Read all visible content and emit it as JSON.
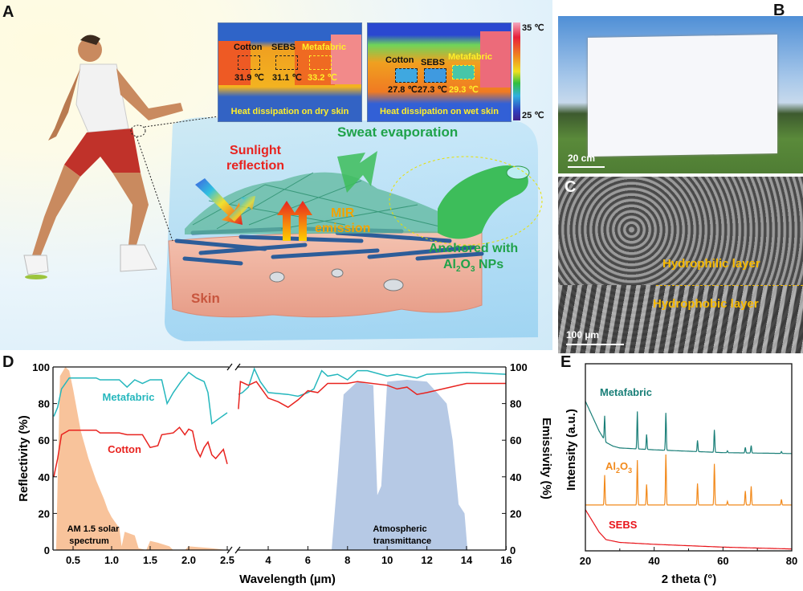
{
  "panel_labels": {
    "a": "A",
    "b": "B",
    "c": "C",
    "d": "D",
    "e": "E"
  },
  "panel_a": {
    "thermal_dry": {
      "labels": [
        "Cotton",
        "SEBS",
        "Metafabric"
      ],
      "temps": [
        "31.9 ℃",
        "31.1 ℃",
        "33.2 ℃"
      ],
      "caption": "Heat dissipation on dry skin"
    },
    "thermal_wet": {
      "labels": [
        "Cotton",
        "SEBS",
        "Metafabric"
      ],
      "temps": [
        "27.8 ℃",
        "27.3 ℃",
        "29.3 ℃"
      ],
      "caption": "Heat dissipation on wet skin"
    },
    "colorbar": {
      "max": "35 ℃",
      "min": "25 ℃"
    },
    "sweat": "Sweat evaporation",
    "sunlight": [
      "Sunlight",
      "reflection"
    ],
    "mir": [
      "MIR",
      "emission"
    ],
    "anchored": [
      "Anchored with",
      "Al",
      "2",
      "O",
      "3",
      " NPs"
    ],
    "skin": "Skin",
    "colors": {
      "sweat": "#1fa24a",
      "sunlight": "#e8231f",
      "mir": "#f2a300"
    }
  },
  "panel_b": {
    "scale_bar": "20 cm"
  },
  "panel_c": {
    "scale_bar": "100 µm",
    "top_layer": "Hydrophilic layer",
    "bottom_layer": "Hydrophobic layer"
  },
  "chart_data": [
    {
      "type": "line",
      "panel": "D",
      "xlabel": "Wavelength  (µm)",
      "ylabel_left": "Reflectivity (%)",
      "ylabel_right": "Emissivity (%)",
      "x_break": [
        2.5,
        2.5
      ],
      "xlim_left": [
        0.25,
        2.5
      ],
      "xlim_right": [
        2.5,
        16
      ],
      "ylim": [
        0,
        100
      ],
      "xticks_left": [
        "0.5",
        "1.0",
        "1.5",
        "2.0",
        "2.5"
      ],
      "xticks_right": [
        "4",
        "6",
        "8",
        "10",
        "12",
        "14",
        "16"
      ],
      "yticks": [
        "0",
        "20",
        "40",
        "60",
        "80",
        "100"
      ],
      "grid": false,
      "series": [
        {
          "name": "Metafabric",
          "color": "#25b7bd",
          "left": [
            [
              0.25,
              73
            ],
            [
              0.3,
              78
            ],
            [
              0.35,
              88
            ],
            [
              0.45,
              94
            ],
            [
              0.8,
              94
            ],
            [
              0.85,
              93
            ],
            [
              1.1,
              93
            ],
            [
              1.2,
              89
            ],
            [
              1.3,
              93
            ],
            [
              1.4,
              91
            ],
            [
              1.5,
              93
            ],
            [
              1.65,
              93
            ],
            [
              1.72,
              80
            ],
            [
              1.8,
              86
            ],
            [
              1.9,
              92
            ],
            [
              2.0,
              97
            ],
            [
              2.1,
              94
            ],
            [
              2.2,
              92
            ],
            [
              2.25,
              86
            ],
            [
              2.3,
              69
            ],
            [
              2.4,
              72
            ],
            [
              2.5,
              75
            ]
          ],
          "right": [
            [
              2.5,
              85
            ],
            [
              2.7,
              86
            ],
            [
              3.0,
              89
            ],
            [
              3.3,
              99
            ],
            [
              3.6,
              92
            ],
            [
              4,
              86
            ],
            [
              5,
              85
            ],
            [
              5.5,
              84
            ],
            [
              6,
              86
            ],
            [
              6.3,
              88
            ],
            [
              6.7,
              98
            ],
            [
              7,
              95
            ],
            [
              7.5,
              96
            ],
            [
              8,
              93
            ],
            [
              8.5,
              98
            ],
            [
              9,
              98
            ],
            [
              10,
              95
            ],
            [
              10.5,
              96
            ],
            [
              11.5,
              94
            ],
            [
              12,
              96
            ],
            [
              14,
              97
            ],
            [
              16,
              96
            ]
          ]
        },
        {
          "name": "Cotton",
          "color": "#e8231f",
          "left": [
            [
              0.25,
              40
            ],
            [
              0.3,
              50
            ],
            [
              0.35,
              63
            ],
            [
              0.45,
              65.5
            ],
            [
              0.8,
              65.5
            ],
            [
              0.85,
              64
            ],
            [
              1.1,
              64
            ],
            [
              1.2,
              63
            ],
            [
              1.4,
              63
            ],
            [
              1.5,
              56
            ],
            [
              1.6,
              57
            ],
            [
              1.65,
              63
            ],
            [
              1.8,
              64
            ],
            [
              1.88,
              67
            ],
            [
              1.95,
              63
            ],
            [
              2.0,
              66
            ],
            [
              2.05,
              65
            ],
            [
              2.1,
              55
            ],
            [
              2.15,
              51
            ],
            [
              2.2,
              56
            ],
            [
              2.25,
              59
            ],
            [
              2.3,
              52
            ],
            [
              2.35,
              50
            ],
            [
              2.45,
              55
            ],
            [
              2.5,
              47
            ]
          ],
          "right": [
            [
              2.5,
              77
            ],
            [
              2.6,
              92
            ],
            [
              3.0,
              90
            ],
            [
              3.4,
              92
            ],
            [
              4,
              83
            ],
            [
              4.5,
              81
            ],
            [
              5,
              78
            ],
            [
              5.5,
              82
            ],
            [
              6,
              87
            ],
            [
              6.5,
              86
            ],
            [
              7,
              91
            ],
            [
              8,
              91
            ],
            [
              8.5,
              92
            ],
            [
              10,
              90
            ],
            [
              10.5,
              88
            ],
            [
              11,
              89
            ],
            [
              11.5,
              85
            ],
            [
              12,
              86
            ],
            [
              14,
              91
            ],
            [
              16,
              91
            ]
          ]
        }
      ],
      "areas": [
        {
          "name": "AM 1.5 solar spectrum",
          "label": [
            "AM 1.5 solar",
            "spectrum"
          ],
          "color": "#f7b98a",
          "points": [
            [
              0.28,
              0
            ],
            [
              0.33,
              95
            ],
            [
              0.4,
              100
            ],
            [
              0.45,
              98
            ],
            [
              0.5,
              88
            ],
            [
              0.6,
              65
            ],
            [
              0.7,
              50
            ],
            [
              0.8,
              38
            ],
            [
              0.9,
              28
            ],
            [
              0.95,
              22
            ],
            [
              1.0,
              18
            ],
            [
              1.1,
              12
            ],
            [
              1.13,
              2
            ],
            [
              1.17,
              10
            ],
            [
              1.3,
              8
            ],
            [
              1.35,
              1
            ],
            [
              1.45,
              0
            ],
            [
              1.5,
              5
            ],
            [
              1.6,
              4
            ],
            [
              1.75,
              2
            ],
            [
              1.8,
              0
            ],
            [
              1.95,
              0
            ],
            [
              2.0,
              2
            ],
            [
              2.3,
              1
            ],
            [
              2.5,
              0
            ]
          ]
        },
        {
          "name": "Atmospheric transmittance",
          "label": [
            "Atmospheric",
            "transmittance"
          ],
          "color": "#a9bfe0",
          "points": [
            [
              7.2,
              0
            ],
            [
              7.5,
              40
            ],
            [
              7.8,
              85
            ],
            [
              8.5,
              92
            ],
            [
              9.3,
              90
            ],
            [
              9.5,
              30
            ],
            [
              9.7,
              35
            ],
            [
              10,
              92
            ],
            [
              11,
              93
            ],
            [
              12,
              92
            ],
            [
              12.6,
              85
            ],
            [
              13,
              80
            ],
            [
              13.3,
              60
            ],
            [
              13.6,
              25
            ],
            [
              13.9,
              20
            ],
            [
              14.05,
              0
            ]
          ]
        }
      ],
      "annotations": [
        "Metafabric",
        "Cotton"
      ]
    },
    {
      "type": "line",
      "panel": "E",
      "xlabel": "2 theta (°)",
      "ylabel": "Intensity (a.u.)",
      "xlim": [
        20,
        80
      ],
      "xticks": [
        "20",
        "40",
        "60",
        "80"
      ],
      "ylim": [
        0,
        100
      ],
      "peak_positions": [
        25.6,
        35.1,
        37.8,
        43.4,
        52.6,
        57.5,
        61.3,
        66.5,
        68.2,
        77.0
      ],
      "series": [
        {
          "name": "Metafabric",
          "color": "#1a7f78",
          "baseline": [
            [
              20,
              80
            ],
            [
              22,
              72
            ],
            [
              24,
              64
            ],
            [
              26,
              58
            ],
            [
              28,
              56
            ],
            [
              30,
              55
            ],
            [
              40,
              54
            ],
            [
              60,
              52.5
            ],
            [
              80,
              52
            ]
          ],
          "peak_heights": [
            13,
            20,
            8,
            20,
            6,
            12,
            1,
            3,
            4,
            1
          ]
        },
        {
          "name": "Al2O3",
          "label": [
            "Al",
            "2",
            "O",
            "3"
          ],
          "color": "#f28a1c",
          "baseline": [
            [
              20,
              24.5
            ],
            [
              80,
              24.5
            ]
          ],
          "peak_heights": [
            16,
            24,
            11,
            27,
            11.5,
            22,
            2,
            7.5,
            10,
            3
          ]
        },
        {
          "name": "SEBS",
          "color": "#e8141a",
          "baseline": [
            [
              20,
              22
            ],
            [
              22,
              16
            ],
            [
              24,
              10
            ],
            [
              26,
              6
            ],
            [
              30,
              4.5
            ],
            [
              40,
              3.5
            ],
            [
              60,
              2
            ],
            [
              80,
              1
            ]
          ],
          "peak_heights": [
            0,
            0,
            0,
            0,
            0,
            0,
            0,
            0,
            0,
            0
          ]
        }
      ]
    }
  ]
}
